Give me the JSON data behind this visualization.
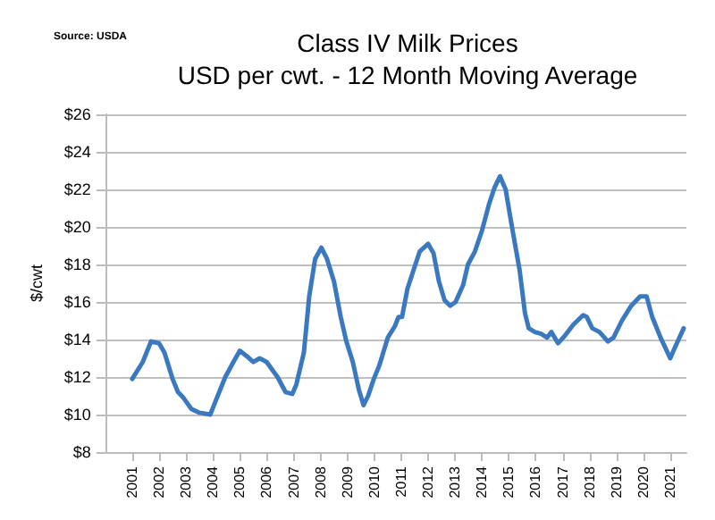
{
  "chart_data": {
    "type": "line",
    "title": "Class IV Milk Prices",
    "subtitle": "USD per cwt. - 12 Month Moving Average",
    "ylabel": "$/cwt",
    "annotations": [
      "Source: USDA"
    ],
    "x": [
      2001.0,
      2001.39,
      2001.7,
      2002.0,
      2002.2,
      2002.5,
      2002.7,
      2002.9,
      2003.2,
      2003.5,
      2003.9,
      2004.15,
      2004.46,
      2004.76,
      2005.0,
      2005.27,
      2005.5,
      2005.74,
      2006.0,
      2006.4,
      2006.7,
      2006.95,
      2007.1,
      2007.38,
      2007.58,
      2007.8,
      2008.03,
      2008.24,
      2008.5,
      2008.75,
      2008.96,
      2009.2,
      2009.43,
      2009.6,
      2009.77,
      2009.98,
      2010.18,
      2010.5,
      2010.76,
      2010.9,
      2011.03,
      2011.23,
      2011.48,
      2011.69,
      2012.0,
      2012.2,
      2012.4,
      2012.61,
      2012.82,
      2013.02,
      2013.3,
      2013.48,
      2013.74,
      2014.0,
      2014.26,
      2014.47,
      2014.67,
      2014.88,
      2015.14,
      2015.4,
      2015.6,
      2015.74,
      2015.97,
      2016.2,
      2016.42,
      2016.58,
      2016.83,
      2017.08,
      2017.4,
      2017.76,
      2017.9,
      2018.1,
      2018.37,
      2018.68,
      2018.89,
      2019.2,
      2019.55,
      2019.88,
      2020.12,
      2020.33,
      2020.64,
      2021.0,
      2021.15,
      2021.5
    ],
    "series": [
      {
        "color": "#3a78c0",
        "values": [
          11.9,
          12.8,
          13.9,
          13.8,
          13.3,
          11.9,
          11.2,
          10.9,
          10.3,
          10.1,
          10.0,
          10.9,
          12.0,
          12.8,
          13.4,
          13.1,
          12.8,
          13.0,
          12.8,
          12.0,
          11.2,
          11.1,
          11.6,
          13.3,
          16.3,
          18.3,
          18.9,
          18.3,
          17.1,
          15.2,
          13.9,
          12.8,
          11.3,
          10.5,
          11.0,
          11.9,
          12.6,
          14.1,
          14.7,
          15.2,
          15.2,
          16.7,
          17.8,
          18.7,
          19.1,
          18.6,
          17.1,
          16.1,
          15.8,
          16.0,
          16.9,
          18.0,
          18.7,
          19.8,
          21.2,
          22.1,
          22.7,
          22.0,
          19.8,
          17.7,
          15.4,
          14.6,
          14.4,
          14.3,
          14.1,
          14.4,
          13.8,
          14.2,
          14.8,
          15.3,
          15.2,
          14.6,
          14.4,
          13.9,
          14.1,
          15.0,
          15.8,
          16.3,
          16.3,
          15.2,
          14.1,
          13.0,
          13.5,
          14.6
        ]
      }
    ],
    "xlim": [
      2000,
      2021.6
    ],
    "xticks": [
      2001,
      2002,
      2003,
      2004,
      2005,
      2006,
      2007,
      2008,
      2009,
      2010,
      2011,
      2012,
      2013,
      2014,
      2015,
      2016,
      2017,
      2018,
      2019,
      2020,
      2021
    ],
    "ylim": [
      8,
      26
    ],
    "yticks": [
      {
        "value": 8,
        "label": "$8"
      },
      {
        "value": 10,
        "label": "$10"
      },
      {
        "value": 12,
        "label": "$12"
      },
      {
        "value": 14,
        "label": "$14"
      },
      {
        "value": 16,
        "label": "$16"
      },
      {
        "value": 18,
        "label": "$18"
      },
      {
        "value": 20,
        "label": "$20"
      },
      {
        "value": 22,
        "label": "$22"
      },
      {
        "value": 24,
        "label": "$24"
      },
      {
        "value": 26,
        "label": "$26"
      }
    ],
    "grid": "y",
    "marker": "none",
    "line_style": "solid"
  }
}
